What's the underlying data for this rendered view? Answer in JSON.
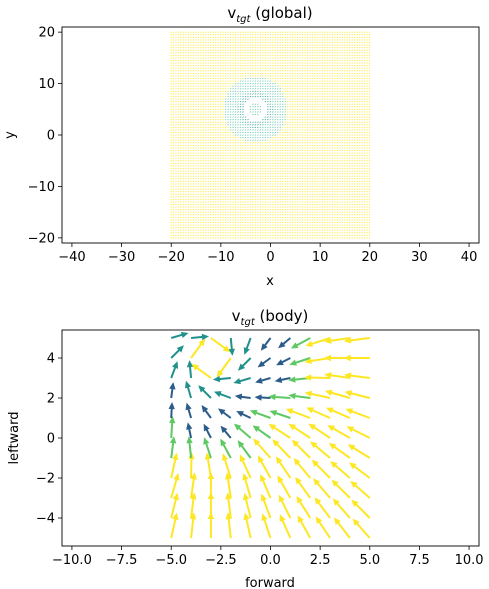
{
  "chart_data": [
    {
      "type": "quiver",
      "title": {
        "base": "v",
        "sub": "tgt",
        "rest": " (global)"
      },
      "xlabel": "x",
      "ylabel": "y",
      "xlim": [
        -42,
        42
      ],
      "ylim": [
        -21,
        21
      ],
      "xticks": [
        -40,
        -30,
        -20,
        -10,
        0,
        10,
        20,
        30,
        40
      ],
      "xtick_labels": [
        "−40",
        "−30",
        "−20",
        "−10",
        "0",
        "10",
        "20",
        "30",
        "40"
      ],
      "yticks": [
        -20,
        -10,
        0,
        10,
        20
      ],
      "ytick_labels": [
        "−20",
        "−10",
        "0",
        "10",
        "20"
      ],
      "field": {
        "x_range": [
          -20,
          20
        ],
        "y_range": [
          -20,
          20
        ],
        "step": 0.5,
        "ring_center": [
          -3,
          5
        ],
        "ring_inner_radius": 1.2,
        "ring_outer_radius": 6.5,
        "ring_hole_radius": 2.5
      },
      "colors": {
        "far": "#fde725",
        "ring": "#5fc3a8",
        "ring_inner": "#2a9d8f"
      }
    },
    {
      "type": "quiver",
      "title": {
        "base": "v",
        "sub": "tgt",
        "rest": " (body)"
      },
      "xlabel": "forward",
      "ylabel": "leftward",
      "xlim": [
        -10.5,
        10.5
      ],
      "ylim": [
        -5.4,
        5.4
      ],
      "xticks": [
        -10,
        -7.5,
        -5,
        -2.5,
        0,
        2.5,
        5,
        7.5,
        10
      ],
      "xtick_labels": [
        "−10.0",
        "−7.5",
        "−5.0",
        "−2.5",
        "0.0",
        "2.5",
        "5.0",
        "7.5",
        "10.0"
      ],
      "yticks": [
        -4,
        -2,
        0,
        2,
        4
      ],
      "ytick_labels": [
        "−4",
        "−2",
        "0",
        "2",
        "4"
      ],
      "grid": {
        "x_start": -5,
        "x_end": 5,
        "y_start": -5,
        "y_end": 5,
        "step": 1
      },
      "target": [
        -3,
        4
      ],
      "colors": {
        "low": "#2c5d8a",
        "mid": "#21918c",
        "midhigh": "#5ec962",
        "high": "#fde725"
      }
    }
  ]
}
